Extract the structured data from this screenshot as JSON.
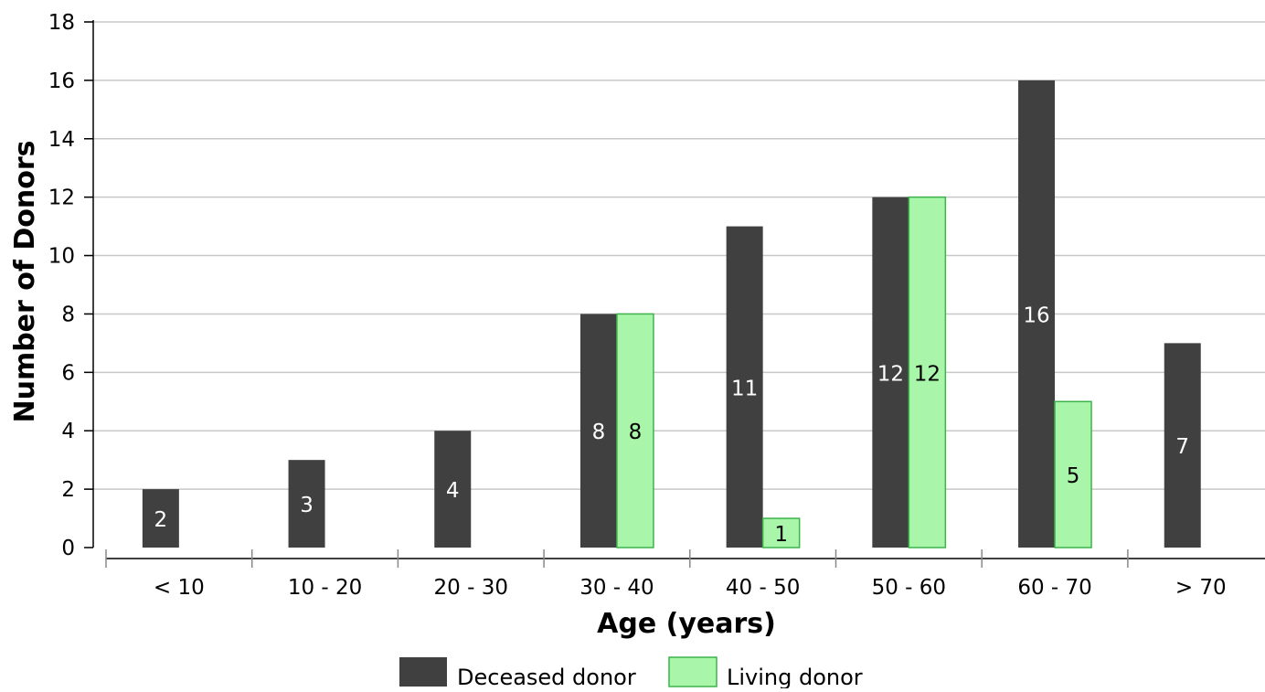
{
  "chart_data": {
    "type": "bar",
    "xlabel": "Age (years)",
    "ylabel": "Number of Donors",
    "categories": [
      "< 10",
      "10 - 20",
      "20 - 30",
      "30 - 40",
      "40 - 50",
      "50 - 60",
      "60 - 70",
      "> 70"
    ],
    "series": [
      {
        "name": "Deceased donor",
        "color": "#404040",
        "label_color": "#ffffff",
        "values": [
          2,
          3,
          4,
          8,
          11,
          12,
          16,
          7
        ]
      },
      {
        "name": "Living donor",
        "color": "#a9f5a9",
        "stroke": "#3cb44b",
        "label_color": "#000000",
        "values": [
          null,
          null,
          null,
          8,
          1,
          12,
          5,
          null
        ]
      }
    ],
    "ylim": [
      0,
      18
    ],
    "yticks": [
      0,
      2,
      4,
      6,
      8,
      10,
      12,
      14,
      16,
      18
    ],
    "grid": true,
    "legend_position": "bottom-center",
    "data_labels": true
  }
}
